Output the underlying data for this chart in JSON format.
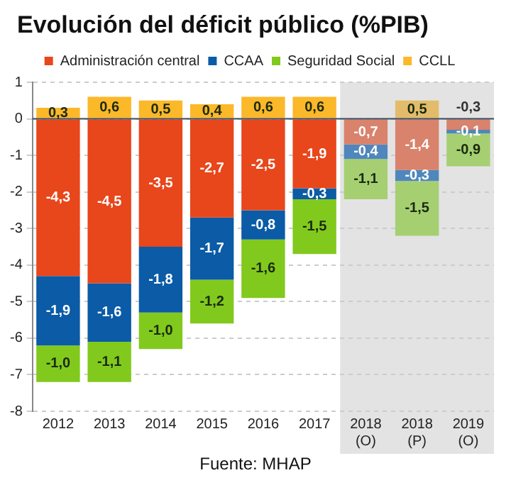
{
  "chart_data": {
    "type": "bar",
    "title": "Evolución del déficit público (%PIB)",
    "annotations": [
      "Fuente: MHAP"
    ],
    "categories": [
      "2012",
      "2013",
      "2014",
      "2015",
      "2016",
      "2017",
      "2018\n(O)",
      "2018\n(P)",
      "2019\n(O)"
    ],
    "stacked": true,
    "legend": "top",
    "grid": "y",
    "ylim": [
      -8,
      1
    ],
    "yticks": [
      -8,
      -7,
      -6,
      -5,
      -4,
      -3,
      -2,
      -1,
      0,
      1
    ],
    "bands": [
      {
        "axis": "x",
        "from": "2018\n(O)",
        "to": "2019\n(O)",
        "color": "#e3e3e3"
      }
    ],
    "series": [
      {
        "name": "Administración central",
        "color": "#e8461b",
        "colors": [
          "#e8461b",
          "#e8461b",
          "#e8461b",
          "#e8461b",
          "#e8461b",
          "#e8461b",
          "#d9826c",
          "#d9826c",
          "#d9826c"
        ],
        "values": [
          -4.3,
          -4.5,
          -3.5,
          -2.7,
          -2.5,
          -1.9,
          -0.7,
          -1.4,
          -0.3
        ],
        "value_labels": [
          "-4,3",
          "-4,5",
          "-3,5",
          "-2,7",
          "-2,5",
          "-1,9",
          "-0,7",
          "-1,4",
          "-0,3"
        ]
      },
      {
        "name": "CCAA",
        "color": "#0b5ba6",
        "colors": [
          "#0b5ba6",
          "#0b5ba6",
          "#0b5ba6",
          "#0b5ba6",
          "#0b5ba6",
          "#0b5ba6",
          "#4f87bd",
          "#4f87bd",
          "#4f87bd"
        ],
        "values": [
          -1.9,
          -1.6,
          -1.8,
          -1.7,
          -0.8,
          -0.3,
          -0.4,
          -0.3,
          -0.1
        ],
        "value_labels": [
          "-1,9",
          "-1,6",
          "-1,8",
          "-1,7",
          "-0,8",
          "-0,3",
          "-0,4",
          "-0,3",
          "-0,1"
        ]
      },
      {
        "name": "Seguridad Social",
        "color": "#82c91e",
        "colors": [
          "#82c91e",
          "#82c91e",
          "#82c91e",
          "#82c91e",
          "#82c91e",
          "#82c91e",
          "#a6cf72",
          "#a6cf72",
          "#a6cf72"
        ],
        "values": [
          -1.0,
          -1.1,
          -1.0,
          -1.2,
          -1.6,
          -1.5,
          -1.1,
          -1.5,
          -0.9
        ],
        "value_labels": [
          "-1,0",
          "-1,1",
          "-1,0",
          "-1,2",
          "-1,6",
          "-1,5",
          "-1,1",
          "-1,5",
          "-0,9"
        ]
      },
      {
        "name": "CCLL",
        "color": "#fbb829",
        "colors": [
          "#fbb829",
          "#fbb829",
          "#fbb829",
          "#fbb829",
          "#fbb829",
          "#fbb829",
          "#e2bc6a",
          "#e2bc6a",
          "#e2bc6a"
        ],
        "values": [
          0.3,
          0.6,
          0.5,
          0.4,
          0.6,
          0.6,
          null,
          0.5,
          null
        ],
        "value_labels": [
          "0,3",
          "0,6",
          "0,5",
          "0,4",
          "0,6",
          "0,6",
          null,
          "0,5",
          null
        ]
      }
    ]
  }
}
